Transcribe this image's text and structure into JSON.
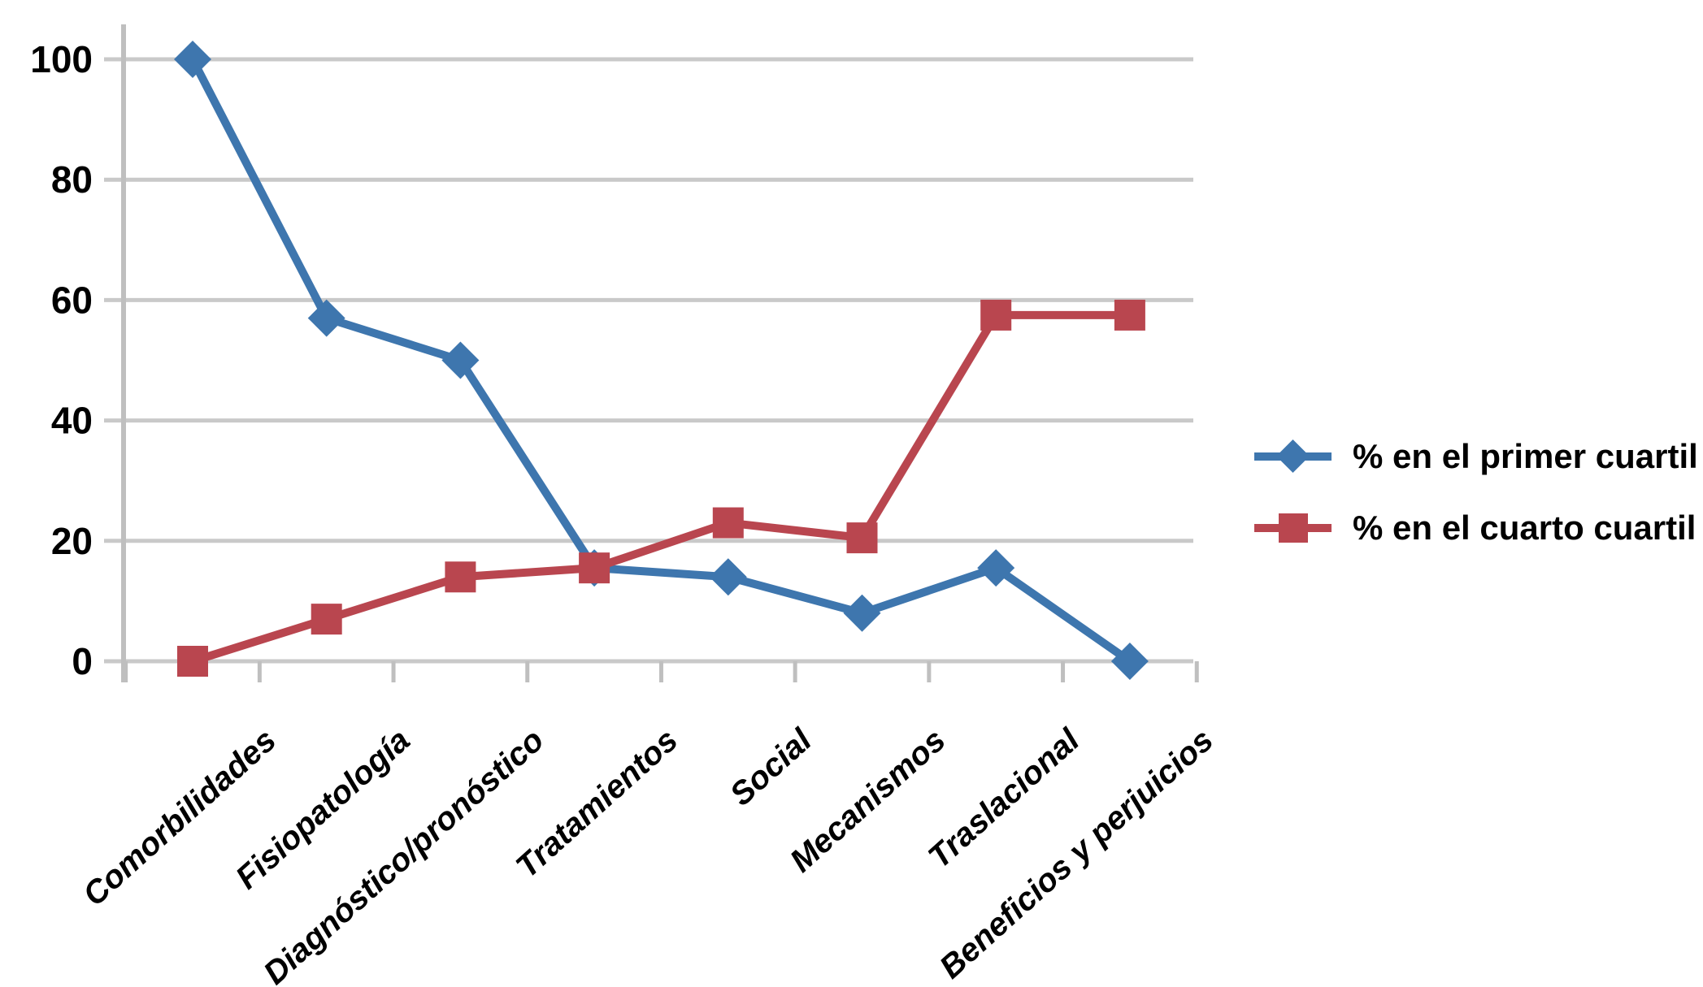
{
  "chart_data": {
    "type": "line",
    "title": "",
    "categories": [
      "Comorbilidades",
      "Fisiopatología",
      "Diagnóstico/pronóstico",
      "Tratamientos",
      "Social",
      "Mecanismos",
      "Traslacional",
      "Beneficios y perjuicios"
    ],
    "series": [
      {
        "name": "% en el primer cuartil",
        "color": "#3E76AE",
        "marker": "diamond",
        "values": [
          100,
          57,
          50,
          15.5,
          14,
          8,
          15.5,
          0
        ]
      },
      {
        "name": "% en el cuarto cuartil",
        "color": "#B9464F",
        "marker": "square",
        "values": [
          0,
          7,
          14,
          15.5,
          23,
          20.5,
          57.5,
          57.5
        ]
      }
    ],
    "yticks": [
      0,
      20,
      40,
      60,
      80,
      100
    ],
    "ylim": [
      0,
      100
    ],
    "xlabel": "",
    "ylabel": "",
    "grid": true,
    "legend_position": "right",
    "gridline_color": "#C9C9C9",
    "axis_color": "#BFBFBF",
    "text_color": "#000000",
    "background_color": "#FFFFFF"
  }
}
